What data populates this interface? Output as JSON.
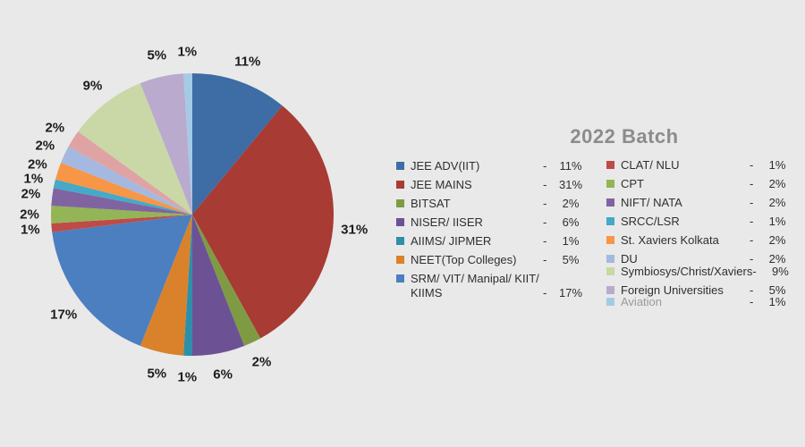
{
  "page": {
    "background": "#e9e9e9"
  },
  "chart_data": {
    "type": "pie",
    "title": "2022 Batch",
    "title_color": "#8c8c8c",
    "start_angle_deg": 0,
    "direction": "clockwise",
    "data_labels": "percent, outside",
    "legend": {
      "position": "right",
      "columns": 2,
      "separator": "-"
    },
    "slices": [
      {
        "label": "JEE ADV(IIT)",
        "value_pct": 11,
        "color": "#3E6CA5",
        "legend_col": 1
      },
      {
        "label": "JEE MAINS",
        "value_pct": 31,
        "color": "#A83B33",
        "legend_col": 1
      },
      {
        "label": "BITSAT",
        "value_pct": 2,
        "color": "#7E9B44",
        "legend_col": 1
      },
      {
        "label": "NISER/ IISER",
        "value_pct": 6,
        "color": "#6C5295",
        "legend_col": 1
      },
      {
        "label": "AIIMS/ JIPMER",
        "value_pct": 1,
        "color": "#2E8FA9",
        "legend_col": 1
      },
      {
        "label": "NEET(Top Colleges)",
        "value_pct": 5,
        "color": "#D9822B",
        "legend_col": 1
      },
      {
        "label": "SRM/ VIT/ Manipal/ KIIT/ KIIMS",
        "value_pct": 17,
        "color": "#4C7FC0",
        "legend_col": 1
      },
      {
        "label": "CLAT/ NLU",
        "value_pct": 1,
        "color": "#BE4B48",
        "legend_col": 2
      },
      {
        "label": "CPT",
        "value_pct": 2,
        "color": "#93B556",
        "legend_col": 2
      },
      {
        "label": "NIFT/ NATA",
        "value_pct": 2,
        "color": "#8064A2",
        "legend_col": 2
      },
      {
        "label": "SRCC/LSR",
        "value_pct": 1,
        "color": "#45A9C8",
        "legend_col": 2
      },
      {
        "label": "St. Xaviers Kolkata",
        "value_pct": 2,
        "color": "#F79646",
        "legend_col": 2
      },
      {
        "label": "DU",
        "value_pct": 2,
        "color": "#A5B8E1",
        "legend_col": 2
      },
      {
        "label": "",
        "value_pct": 2,
        "color": "#E0A3A3",
        "legend_col": 0
      },
      {
        "label": "Symbiosys/Christ/Xaviers",
        "value_pct": 9,
        "color": "#C9D8A6",
        "legend_col": 2
      },
      {
        "label": "Foreign Universities",
        "value_pct": 5,
        "color": "#BAAACE",
        "legend_col": 2
      },
      {
        "label": "Aviation",
        "value_pct": 1,
        "color": "#A4CBE5",
        "legend_col": 2,
        "muted": true
      }
    ]
  }
}
